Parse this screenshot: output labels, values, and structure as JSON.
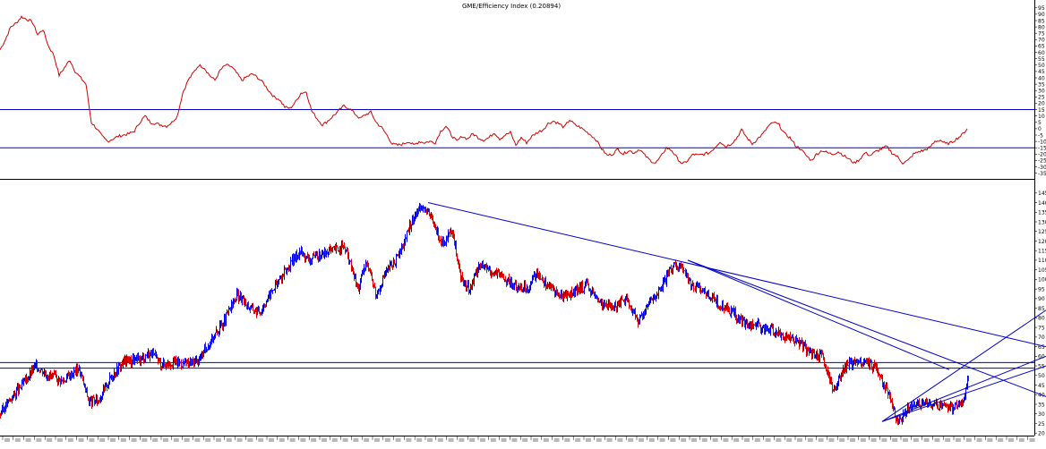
{
  "title": "GME/Efficiency Index (0.20894)",
  "chart_data": [
    {
      "name": "efficiency-index",
      "type": "line",
      "title": "GME/Efficiency Index (0.20894)",
      "ylim": [
        -38,
        100
      ],
      "y_ticks": [
        95,
        90,
        85,
        80,
        75,
        70,
        65,
        60,
        55,
        50,
        45,
        40,
        35,
        30,
        25,
        20,
        15,
        10,
        5,
        0,
        -5,
        -10,
        -15,
        -20,
        -25,
        -30,
        -35
      ],
      "reference_levels": [
        15,
        -15
      ],
      "grid": false,
      "line_color": "#d40000",
      "reference_color": "#0000c8",
      "series": [
        {
          "x": [
            0,
            6,
            12,
            18,
            24,
            30,
            36,
            42,
            48,
            54,
            60,
            66,
            72,
            78,
            84,
            90,
            96,
            102,
            108,
            114,
            120,
            126,
            132,
            138,
            144,
            150,
            156,
            162,
            168,
            174,
            180,
            186,
            192,
            198,
            204,
            210,
            216,
            222,
            228,
            234,
            240,
            246,
            252,
            258,
            264,
            270,
            276,
            282,
            288,
            294,
            300,
            306,
            312,
            318,
            324,
            330,
            336,
            342,
            348,
            354,
            360,
            366,
            372,
            378,
            384,
            390,
            396,
            402,
            408,
            414,
            420,
            426,
            432,
            438,
            444,
            450,
            456,
            462,
            468,
            474,
            480,
            486,
            492,
            498,
            504,
            510,
            516,
            522,
            528,
            534,
            540,
            546,
            552,
            558,
            564,
            570,
            576,
            582,
            588,
            594,
            600,
            606,
            612,
            618,
            624,
            630,
            636,
            642,
            648,
            654,
            660,
            666,
            672,
            678,
            684,
            690,
            696,
            702,
            708,
            714,
            720,
            726,
            732,
            738,
            744,
            750,
            756,
            762,
            768,
            774,
            780,
            786,
            792,
            798,
            804,
            810,
            816,
            822,
            828,
            834,
            840,
            846,
            852,
            858,
            864,
            870,
            876,
            882,
            888,
            894,
            900,
            906,
            912,
            918,
            924,
            930,
            936,
            942,
            948,
            954,
            960,
            966,
            972,
            978,
            984,
            990,
            996,
            1002,
            1008,
            1014,
            1020,
            1026,
            1032,
            1038,
            1044,
            1050,
            1056,
            1062,
            1068,
            1074,
            1080
          ],
          "values": [
            62,
            70,
            80,
            83,
            88,
            86,
            84,
            74,
            78,
            65,
            58,
            42,
            48,
            54,
            45,
            40,
            35,
            5,
            0,
            -6,
            -10,
            -8,
            -6,
            -5,
            -4,
            -2,
            5,
            10,
            5,
            4,
            3,
            2,
            5,
            10,
            28,
            38,
            44,
            50,
            48,
            42,
            38,
            46,
            50,
            49,
            44,
            38,
            41,
            43,
            40,
            36,
            30,
            25,
            23,
            17,
            16,
            21,
            28,
            29,
            14,
            8,
            3,
            6,
            10,
            14,
            18,
            16,
            12,
            8,
            11,
            13,
            5,
            1,
            -5,
            -12,
            -13,
            -12,
            -10,
            -13,
            -10,
            -11,
            -10,
            -11,
            -2,
            2,
            -5,
            -10,
            -6,
            -8,
            -4,
            -7,
            -9,
            -7,
            -3,
            -8,
            -5,
            -3,
            -13,
            -7,
            -11,
            -6,
            -3,
            -1,
            4,
            6,
            4,
            1,
            7,
            3,
            1,
            -2,
            -5,
            -9,
            -16,
            -21,
            -20,
            -16,
            -20,
            -17,
            -19,
            -16,
            -21,
            -25,
            -27,
            -22,
            -15,
            -17,
            -23,
            -28,
            -25,
            -20,
            -21,
            -20,
            -19,
            -15,
            -10,
            -14,
            -12,
            -8,
            -1,
            -7,
            -12,
            -8,
            -4,
            2,
            5,
            3,
            -4,
            -7,
            -13,
            -16,
            -21,
            -25,
            -20,
            -17,
            -19,
            -20,
            -18,
            -21,
            -24,
            -27,
            -24,
            -19,
            -21,
            -18,
            -16,
            -14,
            -19,
            -22,
            -27,
            -25,
            -20,
            -18,
            -17,
            -15,
            -10,
            -9,
            -12,
            -11,
            -8,
            -5,
            0
          ]
        }
      ]
    },
    {
      "name": "price",
      "type": "line",
      "title": "",
      "ylim": [
        18,
        148
      ],
      "y_ticks": [
        145,
        140,
        135,
        130,
        125,
        120,
        115,
        110,
        105,
        100,
        95,
        90,
        85,
        80,
        75,
        70,
        65,
        60,
        55,
        50,
        45,
        40,
        35,
        30,
        25,
        20
      ],
      "horizontal_levels": [
        56.7,
        53.8
      ],
      "grid": false,
      "colors": {
        "up": "#0000e6",
        "down": "#e00000",
        "lines": "#0000c8"
      },
      "series": [
        {
          "x": [
            0,
            12,
            25,
            40,
            55,
            70,
            88,
            100,
            110,
            125,
            140,
            155,
            168,
            180,
            195,
            210,
            222,
            235,
            250,
            265,
            280,
            290,
            305,
            320,
            335,
            345,
            355,
            370,
            385,
            400,
            410,
            420,
            430,
            445,
            460,
            470,
            478,
            486,
            495,
            505,
            515,
            525,
            535,
            545,
            560,
            575,
            590,
            600,
            610,
            625,
            640,
            655,
            670,
            685,
            700,
            712,
            724,
            738,
            750,
            760,
            770,
            785,
            800,
            815,
            830,
            845,
            860,
            875,
            890,
            905,
            918,
            930,
            945,
            960,
            975,
            990,
            1003,
            1015,
            1030,
            1045,
            1060,
            1075,
            1082
          ],
          "values": [
            30,
            38,
            45,
            55,
            50,
            47,
            54,
            36,
            37,
            50,
            58,
            58,
            62,
            56,
            57,
            56,
            58,
            68,
            78,
            92,
            85,
            83,
            95,
            105,
            115,
            110,
            112,
            115,
            117,
            95,
            110,
            92,
            103,
            112,
            130,
            139,
            135,
            127,
            118,
            125,
            100,
            95,
            108,
            105,
            102,
            96,
            96,
            104,
            98,
            92,
            93,
            97,
            88,
            86,
            90,
            78,
            87,
            95,
            106,
            108,
            98,
            95,
            88,
            84,
            78,
            76,
            74,
            71,
            68,
            62,
            60,
            42,
            55,
            58,
            55,
            43,
            25,
            33,
            36,
            34,
            33,
            36,
            50
          ]
        }
      ],
      "trendlines": [
        [
          [
            478,
            140
          ],
          [
            1168,
            65
          ]
        ],
        [
          [
            768,
            110
          ],
          [
            1168,
            39
          ]
        ],
        [
          [
            768,
            110
          ],
          [
            1060,
            53
          ]
        ],
        [
          [
            985,
            26
          ],
          [
            1168,
            84
          ]
        ],
        [
          [
            985,
            26
          ],
          [
            1168,
            60
          ]
        ],
        [
          [
            985,
            26
          ],
          [
            1168,
            55
          ]
        ]
      ]
    }
  ]
}
